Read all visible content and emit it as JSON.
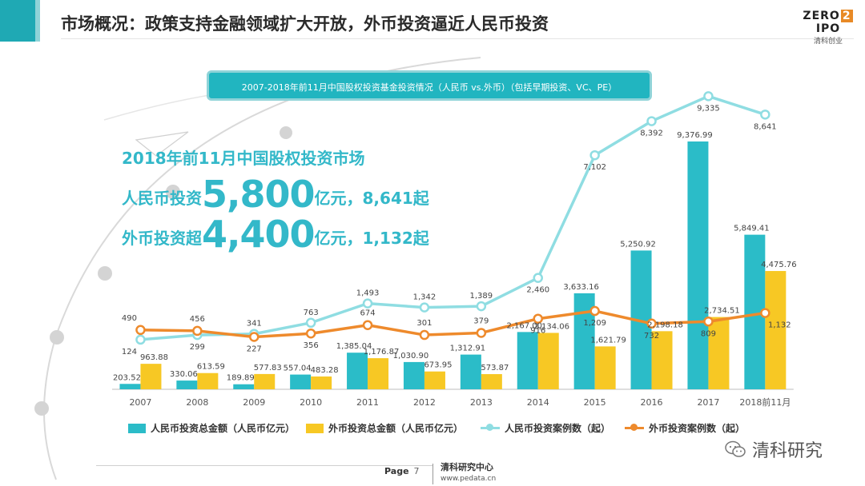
{
  "header": {
    "title": "市场概况：政策支持金融领域扩大开放，外币投资逼近人民币投资",
    "logo_brand_pre": "ZERO",
    "logo_brand_mid": "2",
    "logo_brand_post": "IPO",
    "logo_sub": "清科创业"
  },
  "banner": {
    "text": "2007-2018年前11月中国股权投资基金投资情况（人民币 vs.外币）（包括早期投资、VC、PE）"
  },
  "highlights": {
    "headline": "2018年前11月中国股权投资市场",
    "rmb_prefix": "人民币投资",
    "rmb_value": "5,800",
    "rmb_suffix": "亿元，8,641起",
    "fx_prefix": "外币投资超",
    "fx_value": "4,400",
    "fx_suffix": "亿元，1,132起"
  },
  "colors": {
    "rmb_bar": "#2bbcc8",
    "fx_bar": "#f7c824",
    "rmb_line": "#8fdde2",
    "fx_line": "#ee8a2c",
    "accent": "#33b8c9"
  },
  "chart_data": {
    "type": "bar",
    "categories": [
      "2007",
      "2008",
      "2009",
      "2010",
      "2011",
      "2012",
      "2013",
      "2014",
      "2015",
      "2016",
      "2017",
      "2018前11月"
    ],
    "series": [
      {
        "name": "人民币投资总金额（人民币亿元）",
        "type": "bar",
        "values": [
          203.52,
          330.06,
          189.89,
          557.04,
          1385.04,
          1030.9,
          1312.91,
          2167.0,
          3633.16,
          5250.92,
          9376.99,
          5849.41
        ],
        "labels": [
          "203.52",
          "330.06",
          "189.89",
          "557.04",
          "1,385.04",
          "1,030.90",
          "1,312.91",
          "2,167.00",
          "3,633.16",
          "5,250.92",
          "9,376.99",
          "5,849.41"
        ]
      },
      {
        "name": "外币投资总金额（人民币亿元）",
        "type": "bar",
        "values": [
          963.88,
          613.59,
          577.83,
          483.28,
          1176.87,
          673.95,
          573.87,
          2134.06,
          1621.79,
          2198.18,
          2734.51,
          4475.76
        ],
        "labels": [
          "963.88",
          "613.59",
          "577.83",
          "483.28",
          "1,176.87",
          "673.95",
          "573.87",
          "2,134.06",
          "1,621.79",
          "2,198.18",
          "2,734.51",
          "4,475.76"
        ]
      },
      {
        "name": "人民币投资案例数（起）",
        "type": "line",
        "values": [
          124,
          299,
          341,
          763,
          1493,
          1342,
          1389,
          2460,
          7102,
          8392,
          9335,
          8641
        ],
        "labels": [
          "124",
          "299",
          "341",
          "763",
          "1,493",
          "1,342",
          "1,389",
          "2,460",
          "7,102",
          "8,392",
          "9,335",
          "8,641"
        ]
      },
      {
        "name": "外币投资案例数（起）",
        "type": "line",
        "values": [
          490,
          456,
          227,
          356,
          674,
          301,
          379,
          916,
          1209,
          732,
          809,
          1132
        ],
        "labels": [
          "490",
          "456",
          "227",
          "356",
          "674",
          "301",
          "379",
          "916",
          "1,209",
          "732",
          "809",
          "1,132"
        ]
      }
    ],
    "grid": false,
    "legend_position": "bottom"
  },
  "footer": {
    "page_label": "Page",
    "page_number": "7",
    "org_name": "清科研究中心",
    "org_url": "www.pedata.cn",
    "watermark": "清科研究"
  }
}
